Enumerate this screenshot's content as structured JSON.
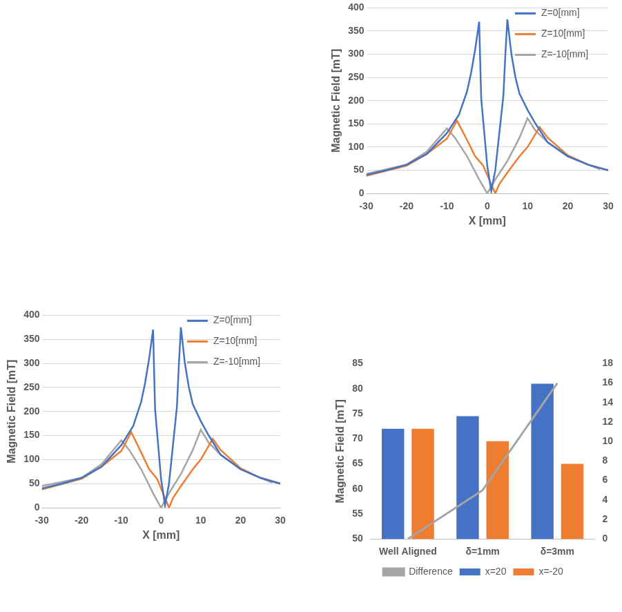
{
  "chart_data": [
    {
      "type": "line",
      "x_label": "X [mm]",
      "y_label": "Magnetic Field [mT]",
      "xlim": [
        -30,
        30
      ],
      "xticks": [
        -30,
        -20,
        -10,
        0,
        10,
        20,
        30
      ],
      "ylim": [
        0,
        400
      ],
      "yticks": [
        0,
        50,
        100,
        150,
        200,
        250,
        300,
        350,
        400
      ],
      "grid": true,
      "legend": "upper right",
      "series": [
        {
          "name": "Z=0[mm]",
          "color": "#4472c4",
          "x": [
            -30,
            -25,
            -20,
            -15,
            -10,
            -7,
            -5,
            -4,
            -3,
            -2,
            -1.5,
            0,
            1,
            2,
            3,
            4,
            4.5,
            5,
            6,
            7,
            8,
            10,
            12,
            15,
            20,
            25,
            30
          ],
          "values": [
            40,
            50,
            62,
            85,
            130,
            170,
            220,
            260,
            310,
            370,
            205,
            60,
            5,
            50,
            130,
            210,
            300,
            375,
            300,
            250,
            215,
            180,
            150,
            110,
            80,
            62,
            50
          ]
        },
        {
          "name": "Z=10[mm]",
          "color": "#ed7d31",
          "x": [
            -30,
            -20,
            -15,
            -10,
            -7.5,
            -5,
            -3,
            -1,
            0,
            2,
            3,
            5,
            8,
            10,
            13,
            15,
            20,
            25,
            30
          ],
          "values": [
            38,
            60,
            85,
            118,
            157,
            115,
            80,
            60,
            40,
            0,
            20,
            45,
            80,
            100,
            143,
            120,
            82,
            62,
            50
          ]
        },
        {
          "name": "Z=-10[mm]",
          "color": "#a5a5a5",
          "x": [
            -30,
            -20,
            -15,
            -10,
            -8,
            -5,
            -2,
            0,
            2,
            5,
            8,
            10,
            12,
            15,
            20,
            25,
            28
          ],
          "values": [
            42,
            62,
            90,
            140,
            120,
            80,
            30,
            0,
            30,
            70,
            120,
            162,
            135,
            110,
            80,
            62,
            52
          ]
        }
      ]
    },
    {
      "type": "line",
      "x_label": "X [mm]",
      "y_label": "Magnetic Field [mT]",
      "xlim": [
        -30,
        30
      ],
      "xticks": [
        -30,
        -20,
        -10,
        0,
        10,
        20,
        30
      ],
      "ylim": [
        0,
        400
      ],
      "yticks": [
        0,
        50,
        100,
        150,
        200,
        250,
        300,
        350,
        400
      ],
      "grid": true,
      "legend": "upper right",
      "series": [
        {
          "name": "Z=0[mm]",
          "color": "#4472c4",
          "x": [
            -30,
            -25,
            -20,
            -15,
            -10,
            -7,
            -5,
            -4,
            -3,
            -2,
            -1.5,
            0,
            1,
            2,
            3,
            4,
            4.5,
            5,
            6,
            7,
            8,
            10,
            12,
            15,
            20,
            25,
            30
          ],
          "values": [
            40,
            50,
            62,
            85,
            130,
            170,
            220,
            260,
            310,
            370,
            205,
            60,
            5,
            50,
            130,
            210,
            300,
            375,
            300,
            250,
            215,
            180,
            150,
            110,
            80,
            62,
            50
          ]
        },
        {
          "name": "Z=10[mm]",
          "color": "#ed7d31",
          "x": [
            -30,
            -20,
            -15,
            -10,
            -7.5,
            -5,
            -3,
            -1,
            0,
            2,
            3,
            5,
            8,
            10,
            13,
            15,
            20,
            25,
            30
          ],
          "values": [
            38,
            60,
            85,
            118,
            157,
            115,
            80,
            60,
            40,
            0,
            20,
            45,
            80,
            100,
            143,
            120,
            82,
            62,
            50
          ]
        },
        {
          "name": "Z=-10[mm]",
          "color": "#a5a5a5",
          "x": [
            -30,
            -20,
            -15,
            -10,
            -8,
            -5,
            -2,
            0,
            2,
            5,
            8,
            10,
            12,
            15,
            20,
            25,
            28
          ],
          "values": [
            45,
            62,
            90,
            140,
            120,
            80,
            30,
            0,
            30,
            70,
            120,
            162,
            135,
            110,
            80,
            62,
            52
          ]
        }
      ]
    },
    {
      "type": "bar",
      "y_label": "Magnetic Field [mT]",
      "categories": [
        "Well Aligned",
        "δ=1mm",
        "δ=3mm"
      ],
      "ylim": [
        50,
        85
      ],
      "yticks": [
        50,
        55,
        60,
        65,
        70,
        75,
        80,
        85
      ],
      "y2lim": [
        0,
        18
      ],
      "y2ticks": [
        0,
        2,
        4,
        6,
        8,
        10,
        12,
        14,
        16,
        18
      ],
      "grid": false,
      "legend": "bottom",
      "series": [
        {
          "name": "x=20",
          "color": "#4472c4",
          "values": [
            72,
            74.5,
            81
          ]
        },
        {
          "name": "x=-20",
          "color": "#ed7d31",
          "values": [
            72,
            69.5,
            65
          ]
        },
        {
          "name": "Difference",
          "color": "#a5a5a5",
          "type": "line",
          "axis": "y2",
          "values": [
            0,
            5,
            16
          ]
        }
      ]
    }
  ]
}
